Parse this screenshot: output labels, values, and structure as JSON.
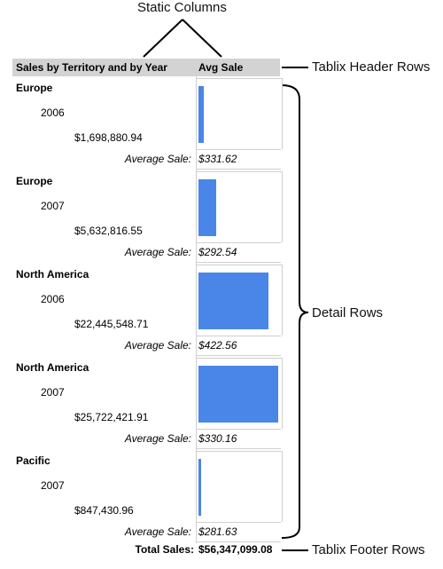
{
  "callouts": {
    "static_columns": "Static Columns",
    "header_rows": "Tablix Header Rows",
    "detail_rows": "Detail Rows",
    "footer_rows": "Tablix Footer Rows"
  },
  "header": {
    "col1": "Sales by Territory and by Year",
    "col2": "Avg Sale"
  },
  "groups": [
    {
      "region": "Europe",
      "year": "2006",
      "total": "$1,698,880.94",
      "avg_label": "Average Sale:",
      "avg_sale": "$331.62",
      "bar_fraction": 0.066
    },
    {
      "region": "Europe",
      "year": "2007",
      "total": "$5,632,816.55",
      "avg_label": "Average Sale:",
      "avg_sale": "$292.54",
      "bar_fraction": 0.219
    },
    {
      "region": "North America",
      "year": "2006",
      "total": "$22,445,548.71",
      "avg_label": "Average Sale:",
      "avg_sale": "$422.56",
      "bar_fraction": 0.873
    },
    {
      "region": "North America",
      "year": "2007",
      "total": "$25,722,421.91",
      "avg_label": "Average Sale:",
      "avg_sale": "$330.16",
      "bar_fraction": 1.0
    },
    {
      "region": "Pacific",
      "year": "2007",
      "total": "$847,430.96",
      "avg_label": "Average Sale:",
      "avg_sale": "$281.63",
      "bar_fraction": 0.033
    }
  ],
  "footer": {
    "label": "Total Sales:",
    "value": "$56,347,099.08"
  },
  "colors": {
    "bar": "#4a86e8",
    "header_bg": "#d3d3d3"
  }
}
